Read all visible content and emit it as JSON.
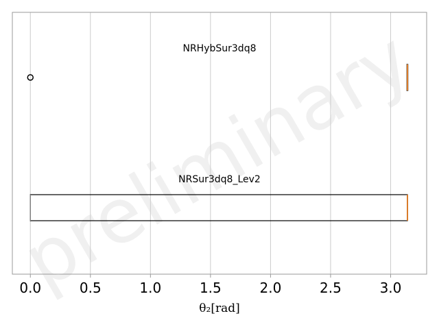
{
  "chart_data": {
    "type": "box",
    "orientation": "horizontal",
    "watermark": "preliminary",
    "xlabel": "θ₂[rad]",
    "xlim": [
      -0.15,
      3.3
    ],
    "xticks": [
      0.0,
      0.5,
      1.0,
      1.5,
      2.0,
      2.5,
      3.0
    ],
    "xtick_labels": [
      "0.0",
      "0.5",
      "1.0",
      "1.5",
      "2.0",
      "2.5",
      "3.0"
    ],
    "grid": "vertical",
    "boxes": [
      {
        "label": "NRHybSur3dq8",
        "min": 3.135,
        "q1": 3.135,
        "median": 3.14,
        "q3": 3.14,
        "max": 3.14,
        "outliers": [
          0.0
        ]
      },
      {
        "label": "NRSur3dq8_Lev2",
        "min": 0.0,
        "q1": 0.0,
        "median": 3.14,
        "q3": 3.14,
        "max": 3.14,
        "outliers": []
      }
    ],
    "colors": {
      "box": "#000000",
      "median": "#d97b2a",
      "whisker": "#7f7f7f",
      "grid": "#cccccc",
      "frame": "#999999"
    }
  }
}
